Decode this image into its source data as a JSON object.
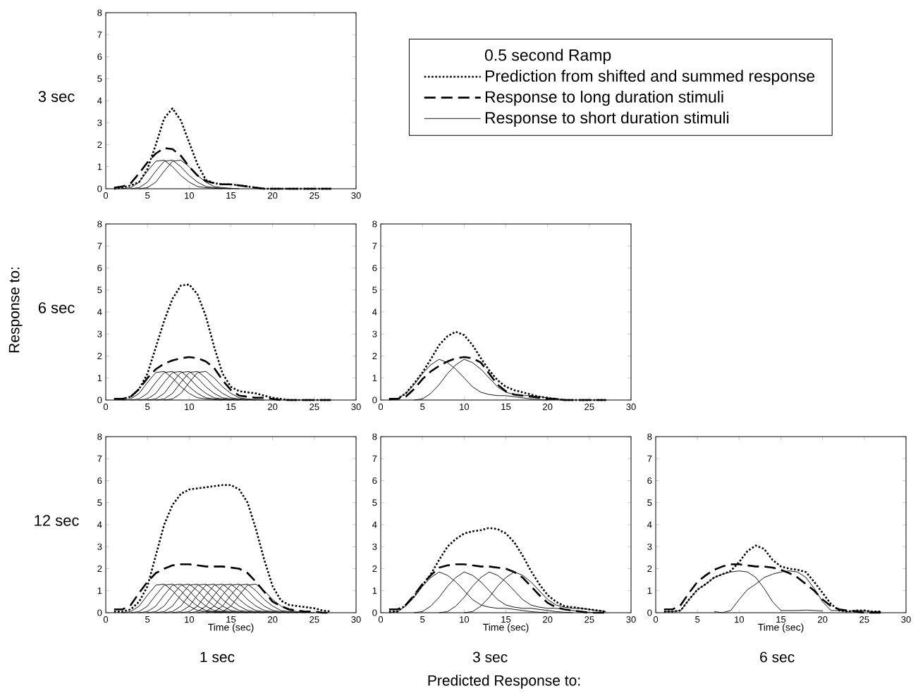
{
  "chart_data": [
    {
      "type": "line",
      "ylabel": "3 sec",
      "xlim": [
        0,
        30
      ],
      "ylim": [
        0,
        8
      ],
      "xticks": [
        0,
        5,
        10,
        15,
        20,
        25,
        30
      ],
      "yticks": [
        0,
        1,
        2,
        3,
        4,
        5,
        6,
        7,
        8
      ],
      "legend": "right",
      "legend_title": "0.5 second Ramp",
      "series": [
        {
          "name": "Prediction from shifted and summed response",
          "color": "#000000",
          "line_style": "dotted",
          "x": [
            1,
            2,
            3,
            4,
            5,
            6,
            7,
            8,
            9,
            10,
            11,
            12,
            13,
            14,
            15,
            16,
            17,
            18,
            19,
            20,
            21,
            22,
            23,
            24,
            25,
            26,
            27
          ],
          "values": [
            0,
            0.05,
            0.15,
            0.3,
            0.9,
            2.0,
            3.2,
            3.65,
            3.1,
            2.1,
            1.1,
            0.4,
            0.25,
            0.2,
            0.2,
            0.15,
            0.1,
            0.05,
            0,
            0,
            0,
            0,
            0,
            0,
            0,
            0,
            0
          ]
        },
        {
          "name": "Response to long duration stimuli",
          "color": "#000000",
          "line_style": "dashed",
          "x": [
            1,
            2,
            3,
            4,
            5,
            6,
            7,
            8,
            9,
            10,
            11,
            12,
            13,
            14,
            15,
            16,
            17,
            18,
            19,
            20,
            21,
            22,
            23,
            24,
            25,
            26,
            27
          ],
          "values": [
            0.05,
            0.1,
            0.25,
            0.7,
            1.2,
            1.6,
            1.85,
            1.8,
            1.5,
            1.0,
            0.6,
            0.35,
            0.25,
            0.2,
            0.2,
            0.15,
            0.1,
            0.05,
            0,
            0,
            0,
            0,
            0,
            0,
            0,
            0,
            0
          ]
        },
        {
          "name": "Response to short duration stimuli",
          "color": "#000000",
          "line_style": "solid",
          "x": [
            2,
            3,
            4,
            5,
            6,
            7,
            8,
            9,
            10,
            11,
            12,
            13,
            14
          ],
          "values": [
            0,
            0.05,
            0.3,
            0.8,
            1.25,
            1.3,
            1.0,
            0.6,
            0.3,
            0.1,
            0.05,
            0.02,
            0
          ]
        },
        {
          "color": "#000000",
          "line_style": "solid",
          "x": [
            3,
            4,
            5,
            6,
            7,
            8,
            9,
            10,
            11,
            12,
            13,
            14,
            15
          ],
          "values": [
            0,
            0.05,
            0.3,
            0.8,
            1.25,
            1.3,
            1.0,
            0.6,
            0.3,
            0.1,
            0.05,
            0.02,
            0
          ]
        },
        {
          "color": "#000000",
          "line_style": "solid",
          "x": [
            4,
            5,
            6,
            7,
            8,
            9,
            10,
            11,
            12,
            13,
            14,
            15,
            16
          ],
          "values": [
            0,
            0.05,
            0.3,
            0.8,
            1.25,
            1.3,
            1.0,
            0.6,
            0.3,
            0.1,
            0.05,
            0.02,
            0
          ]
        }
      ]
    },
    {
      "type": "line",
      "ylabel": "6 sec",
      "xlim": [
        0,
        30
      ],
      "ylim": [
        0,
        8
      ],
      "xticks": [
        0,
        5,
        10,
        15,
        20,
        25,
        30
      ],
      "yticks": [
        0,
        1,
        2,
        3,
        4,
        5,
        6,
        7,
        8
      ],
      "annotations": [
        "Response to:"
      ],
      "series": [
        {
          "color": "#000000",
          "line_style": "dotted",
          "x": [
            1,
            2,
            3,
            4,
            5,
            6,
            7,
            8,
            9,
            10,
            11,
            12,
            13,
            14,
            15,
            16,
            17,
            18,
            19,
            20,
            21,
            22,
            23,
            24,
            25,
            26,
            27
          ],
          "values": [
            0.05,
            0.05,
            0.15,
            0.5,
            1.2,
            2.4,
            3.6,
            4.6,
            5.2,
            5.25,
            4.8,
            3.8,
            2.4,
            1.2,
            0.6,
            0.4,
            0.35,
            0.3,
            0.2,
            0.1,
            0.05,
            0,
            0,
            0,
            0,
            0,
            0
          ]
        },
        {
          "color": "#000000",
          "line_style": "dashed",
          "x": [
            1,
            2,
            3,
            4,
            5,
            6,
            7,
            8,
            9,
            10,
            11,
            12,
            13,
            14,
            15,
            16,
            17,
            18,
            19,
            20,
            21,
            22,
            23,
            24,
            25,
            26,
            27
          ],
          "values": [
            0.05,
            0.05,
            0.15,
            0.5,
            1.0,
            1.4,
            1.65,
            1.8,
            1.9,
            1.95,
            1.9,
            1.75,
            1.45,
            0.9,
            0.45,
            0.2,
            0.15,
            0.1,
            0.1,
            0.05,
            0,
            0,
            0,
            0,
            0,
            0,
            0
          ]
        },
        {
          "color": "#000000",
          "line_style": "solid",
          "x": [
            2,
            3,
            4,
            5,
            6,
            7,
            8,
            9,
            10,
            11,
            12,
            13,
            14
          ],
          "values": [
            0,
            0.05,
            0.3,
            0.8,
            1.25,
            1.3,
            1.0,
            0.6,
            0.3,
            0.1,
            0.05,
            0.02,
            0
          ]
        },
        {
          "color": "#000000",
          "line_style": "solid",
          "x": [
            3,
            4,
            5,
            6,
            7,
            8,
            9,
            10,
            11,
            12,
            13,
            14,
            15
          ],
          "values": [
            0,
            0.05,
            0.3,
            0.8,
            1.25,
            1.3,
            1.0,
            0.6,
            0.3,
            0.1,
            0.05,
            0.02,
            0
          ]
        },
        {
          "color": "#000000",
          "line_style": "solid",
          "x": [
            4,
            5,
            6,
            7,
            8,
            9,
            10,
            11,
            12,
            13,
            14,
            15,
            16
          ],
          "values": [
            0,
            0.05,
            0.3,
            0.8,
            1.25,
            1.3,
            1.0,
            0.6,
            0.3,
            0.1,
            0.05,
            0.02,
            0
          ]
        },
        {
          "color": "#000000",
          "line_style": "solid",
          "x": [
            5,
            6,
            7,
            8,
            9,
            10,
            11,
            12,
            13,
            14,
            15,
            16,
            17
          ],
          "values": [
            0,
            0.05,
            0.3,
            0.8,
            1.25,
            1.3,
            1.0,
            0.6,
            0.3,
            0.1,
            0.05,
            0.02,
            0
          ]
        },
        {
          "color": "#000000",
          "line_style": "solid",
          "x": [
            6,
            7,
            8,
            9,
            10,
            11,
            12,
            13,
            14,
            15,
            16,
            17,
            18
          ],
          "values": [
            0,
            0.05,
            0.3,
            0.8,
            1.25,
            1.3,
            1.0,
            0.6,
            0.3,
            0.1,
            0.05,
            0.02,
            0
          ]
        },
        {
          "color": "#000000",
          "line_style": "solid",
          "x": [
            7,
            8,
            9,
            10,
            11,
            12,
            13,
            14,
            15,
            16,
            17,
            18,
            19
          ],
          "values": [
            0,
            0.05,
            0.3,
            0.8,
            1.25,
            1.3,
            1.0,
            0.6,
            0.3,
            0.1,
            0.05,
            0.02,
            0
          ]
        }
      ]
    },
    {
      "type": "line",
      "xlim": [
        0,
        30
      ],
      "ylim": [
        0,
        8
      ],
      "xticks": [
        0,
        5,
        10,
        15,
        20,
        25,
        30
      ],
      "yticks": [
        0,
        1,
        2,
        3,
        4,
        5,
        6,
        7,
        8
      ],
      "series": [
        {
          "color": "#000000",
          "line_style": "dotted",
          "x": [
            1,
            2,
            3,
            4,
            5,
            6,
            7,
            8,
            9,
            10,
            11,
            12,
            13,
            14,
            15,
            16,
            17,
            18,
            19,
            20,
            21,
            22,
            23,
            24,
            25,
            26,
            27
          ],
          "values": [
            0.05,
            0.05,
            0.3,
            0.75,
            1.25,
            1.85,
            2.5,
            2.9,
            3.1,
            2.95,
            2.5,
            1.9,
            1.35,
            0.9,
            0.6,
            0.45,
            0.35,
            0.25,
            0.15,
            0.1,
            0.05,
            0,
            0,
            0,
            0,
            0,
            0
          ]
        },
        {
          "color": "#000000",
          "line_style": "dashed",
          "x": [
            1,
            2,
            3,
            4,
            5,
            6,
            7,
            8,
            9,
            10,
            11,
            12,
            13,
            14,
            15,
            16,
            17,
            18,
            19,
            20,
            21,
            22,
            23,
            24,
            25,
            26,
            27
          ],
          "values": [
            0.05,
            0.05,
            0.15,
            0.5,
            0.95,
            1.3,
            1.55,
            1.75,
            1.9,
            1.95,
            1.9,
            1.7,
            1.2,
            0.7,
            0.4,
            0.25,
            0.2,
            0.15,
            0.1,
            0.05,
            0.05,
            0,
            0,
            0,
            0,
            0,
            0
          ]
        },
        {
          "color": "#000000",
          "line_style": "solid",
          "x": [
            1,
            2,
            3,
            4,
            5,
            6,
            7,
            8,
            9,
            10,
            11,
            12,
            13,
            14,
            15,
            16,
            17,
            18,
            19,
            20
          ],
          "values": [
            0,
            0.05,
            0.3,
            0.7,
            1.2,
            1.6,
            1.85,
            1.7,
            1.4,
            1.0,
            0.6,
            0.35,
            0.25,
            0.2,
            0.2,
            0.15,
            0.1,
            0.05,
            0.02,
            0
          ]
        },
        {
          "color": "#000000",
          "line_style": "solid",
          "x": [
            4,
            5,
            6,
            7,
            8,
            9,
            10,
            11,
            12,
            13,
            14,
            15,
            16,
            17,
            18,
            19,
            20,
            21,
            22,
            23
          ],
          "values": [
            0,
            0.05,
            0.3,
            0.7,
            1.2,
            1.6,
            1.85,
            1.7,
            1.4,
            1.0,
            0.6,
            0.35,
            0.25,
            0.2,
            0.2,
            0.15,
            0.1,
            0.05,
            0.02,
            0
          ]
        }
      ]
    },
    {
      "type": "line",
      "ylabel": "12 sec",
      "xlabel": "Time (sec)",
      "xlim": [
        0,
        30
      ],
      "ylim": [
        0,
        8
      ],
      "xticks": [
        0,
        5,
        10,
        15,
        20,
        25,
        30
      ],
      "yticks": [
        0,
        1,
        2,
        3,
        4,
        5,
        6,
        7,
        8
      ],
      "annotations": [
        "1 sec"
      ],
      "series": [
        {
          "color": "#000000",
          "line_style": "dotted",
          "x": [
            1,
            2,
            3,
            4,
            5,
            6,
            7,
            8,
            9,
            10,
            11,
            12,
            13,
            14,
            15,
            16,
            17,
            18,
            19,
            20,
            21,
            22,
            23,
            24,
            25,
            26,
            27
          ],
          "values": [
            0.05,
            0.05,
            0.15,
            0.5,
            1.2,
            2.6,
            4.0,
            4.9,
            5.4,
            5.6,
            5.65,
            5.7,
            5.75,
            5.8,
            5.8,
            5.6,
            5.0,
            3.8,
            2.4,
            1.2,
            0.55,
            0.35,
            0.3,
            0.25,
            0.2,
            0.1,
            0.05
          ]
        },
        {
          "color": "#000000",
          "line_style": "dashed",
          "x": [
            1,
            2,
            3,
            4,
            5,
            6,
            7,
            8,
            9,
            10,
            11,
            12,
            13,
            14,
            15,
            16,
            17,
            18,
            19,
            20,
            21,
            22,
            23,
            24,
            25,
            26,
            27
          ],
          "values": [
            0.15,
            0.15,
            0.35,
            0.9,
            1.4,
            1.8,
            2.0,
            2.15,
            2.2,
            2.2,
            2.15,
            2.1,
            2.1,
            2.1,
            2.05,
            2.0,
            1.8,
            1.4,
            0.95,
            0.5,
            0.3,
            0.15,
            0.1,
            0.05,
            0.05,
            0,
            0
          ]
        },
        {
          "color": "#000000",
          "line_style": "solid",
          "x": [
            2,
            3,
            4,
            5,
            6,
            7,
            8,
            9,
            10,
            11,
            12,
            13,
            14
          ],
          "values": [
            0,
            0.05,
            0.3,
            0.8,
            1.25,
            1.3,
            1.0,
            0.6,
            0.3,
            0.1,
            0.05,
            0.02,
            0
          ]
        },
        {
          "color": "#000000",
          "line_style": "solid",
          "x": [
            3,
            4,
            5,
            6,
            7,
            8,
            9,
            10,
            11,
            12,
            13,
            14,
            15
          ],
          "values": [
            0,
            0.05,
            0.3,
            0.8,
            1.25,
            1.3,
            1.0,
            0.6,
            0.3,
            0.1,
            0.05,
            0.02,
            0
          ]
        },
        {
          "color": "#000000",
          "line_style": "solid",
          "x": [
            4,
            5,
            6,
            7,
            8,
            9,
            10,
            11,
            12,
            13,
            14,
            15,
            16
          ],
          "values": [
            0,
            0.05,
            0.3,
            0.8,
            1.25,
            1.3,
            1.0,
            0.6,
            0.3,
            0.1,
            0.05,
            0.02,
            0
          ]
        },
        {
          "color": "#000000",
          "line_style": "solid",
          "x": [
            5,
            6,
            7,
            8,
            9,
            10,
            11,
            12,
            13,
            14,
            15,
            16,
            17
          ],
          "values": [
            0,
            0.05,
            0.3,
            0.8,
            1.25,
            1.3,
            1.0,
            0.6,
            0.3,
            0.1,
            0.05,
            0.02,
            0
          ]
        },
        {
          "color": "#000000",
          "line_style": "solid",
          "x": [
            6,
            7,
            8,
            9,
            10,
            11,
            12,
            13,
            14,
            15,
            16,
            17,
            18
          ],
          "values": [
            0,
            0.05,
            0.3,
            0.8,
            1.25,
            1.3,
            1.0,
            0.6,
            0.3,
            0.1,
            0.05,
            0.02,
            0
          ]
        },
        {
          "color": "#000000",
          "line_style": "solid",
          "x": [
            7,
            8,
            9,
            10,
            11,
            12,
            13,
            14,
            15,
            16,
            17,
            18,
            19
          ],
          "values": [
            0,
            0.05,
            0.3,
            0.8,
            1.25,
            1.3,
            1.0,
            0.6,
            0.3,
            0.1,
            0.05,
            0.02,
            0
          ]
        },
        {
          "color": "#000000",
          "line_style": "solid",
          "x": [
            8,
            9,
            10,
            11,
            12,
            13,
            14,
            15,
            16,
            17,
            18,
            19,
            20
          ],
          "values": [
            0,
            0.05,
            0.3,
            0.8,
            1.25,
            1.3,
            1.0,
            0.6,
            0.3,
            0.1,
            0.05,
            0.02,
            0
          ]
        },
        {
          "color": "#000000",
          "line_style": "solid",
          "x": [
            9,
            10,
            11,
            12,
            13,
            14,
            15,
            16,
            17,
            18,
            19,
            20,
            21
          ],
          "values": [
            0,
            0.05,
            0.3,
            0.8,
            1.25,
            1.3,
            1.0,
            0.6,
            0.3,
            0.1,
            0.05,
            0.02,
            0
          ]
        },
        {
          "color": "#000000",
          "line_style": "solid",
          "x": [
            10,
            11,
            12,
            13,
            14,
            15,
            16,
            17,
            18,
            19,
            20,
            21,
            22
          ],
          "values": [
            0,
            0.05,
            0.3,
            0.8,
            1.25,
            1.3,
            1.0,
            0.6,
            0.3,
            0.1,
            0.05,
            0.02,
            0
          ]
        },
        {
          "color": "#000000",
          "line_style": "solid",
          "x": [
            11,
            12,
            13,
            14,
            15,
            16,
            17,
            18,
            19,
            20,
            21,
            22,
            23
          ],
          "values": [
            0,
            0.05,
            0.3,
            0.8,
            1.25,
            1.3,
            1.0,
            0.6,
            0.3,
            0.1,
            0.05,
            0.02,
            0
          ]
        },
        {
          "color": "#000000",
          "line_style": "solid",
          "x": [
            12,
            13,
            14,
            15,
            16,
            17,
            18,
            19,
            20,
            21,
            22,
            23,
            24
          ],
          "values": [
            0,
            0.05,
            0.3,
            0.8,
            1.25,
            1.3,
            1.0,
            0.6,
            0.3,
            0.1,
            0.05,
            0.02,
            0
          ]
        },
        {
          "color": "#000000",
          "line_style": "solid",
          "x": [
            13,
            14,
            15,
            16,
            17,
            18,
            19,
            20,
            21,
            22,
            23,
            24,
            25
          ],
          "values": [
            0,
            0.05,
            0.3,
            0.8,
            1.25,
            1.3,
            1.0,
            0.6,
            0.3,
            0.1,
            0.05,
            0.02,
            0
          ]
        }
      ]
    },
    {
      "type": "line",
      "xlabel": "Time (sec)",
      "xlim": [
        0,
        30
      ],
      "ylim": [
        0,
        8
      ],
      "xticks": [
        0,
        5,
        10,
        15,
        20,
        25,
        30
      ],
      "yticks": [
        0,
        1,
        2,
        3,
        4,
        5,
        6,
        7,
        8
      ],
      "annotations": [
        "3 sec",
        "Predicted Response to:"
      ],
      "series": [
        {
          "color": "#000000",
          "line_style": "dotted",
          "x": [
            1,
            2,
            3,
            4,
            5,
            6,
            7,
            8,
            9,
            10,
            11,
            12,
            13,
            14,
            15,
            16,
            17,
            18,
            19,
            20,
            21,
            22,
            23,
            24,
            25,
            26,
            27
          ],
          "values": [
            0.05,
            0.05,
            0.35,
            0.75,
            1.25,
            1.75,
            2.4,
            3.0,
            3.35,
            3.6,
            3.7,
            3.75,
            3.85,
            3.8,
            3.6,
            3.2,
            2.6,
            1.9,
            1.3,
            0.8,
            0.5,
            0.3,
            0.25,
            0.2,
            0.15,
            0.1,
            0.05
          ]
        },
        {
          "color": "#000000",
          "line_style": "dashed",
          "x": [
            1,
            2,
            3,
            4,
            5,
            6,
            7,
            8,
            9,
            10,
            11,
            12,
            13,
            14,
            15,
            16,
            17,
            18,
            19,
            20,
            21,
            22,
            23,
            24,
            25,
            26,
            27
          ],
          "values": [
            0.15,
            0.15,
            0.35,
            0.8,
            1.3,
            1.7,
            2.05,
            2.15,
            2.2,
            2.2,
            2.15,
            2.1,
            2.1,
            2.05,
            2.0,
            1.85,
            1.6,
            1.2,
            0.8,
            0.45,
            0.25,
            0.15,
            0.1,
            0.05,
            0,
            0,
            0
          ]
        },
        {
          "color": "#000000",
          "line_style": "solid",
          "x": [
            1,
            2,
            3,
            4,
            5,
            6,
            7,
            8,
            9,
            10,
            11,
            12,
            13,
            14,
            15,
            16,
            17,
            18,
            19,
            20
          ],
          "values": [
            0,
            0.05,
            0.3,
            0.7,
            1.2,
            1.6,
            1.85,
            1.7,
            1.4,
            1.0,
            0.6,
            0.35,
            0.25,
            0.2,
            0.2,
            0.15,
            0.1,
            0.05,
            0.02,
            0
          ]
        },
        {
          "color": "#000000",
          "line_style": "solid",
          "x": [
            4,
            5,
            6,
            7,
            8,
            9,
            10,
            11,
            12,
            13,
            14,
            15,
            16,
            17,
            18,
            19,
            20,
            21,
            22,
            23
          ],
          "values": [
            0,
            0.05,
            0.3,
            0.7,
            1.2,
            1.6,
            1.85,
            1.7,
            1.4,
            1.0,
            0.6,
            0.35,
            0.25,
            0.2,
            0.2,
            0.15,
            0.1,
            0.05,
            0.02,
            0
          ]
        },
        {
          "color": "#000000",
          "line_style": "solid",
          "x": [
            7,
            8,
            9,
            10,
            11,
            12,
            13,
            14,
            15,
            16,
            17,
            18,
            19,
            20,
            21,
            22,
            23,
            24,
            25,
            26
          ],
          "values": [
            0,
            0.05,
            0.3,
            0.7,
            1.2,
            1.6,
            1.85,
            1.7,
            1.4,
            1.0,
            0.6,
            0.35,
            0.25,
            0.2,
            0.2,
            0.15,
            0.1,
            0.05,
            0.02,
            0
          ]
        },
        {
          "color": "#000000",
          "line_style": "solid",
          "x": [
            10,
            11,
            12,
            13,
            14,
            15,
            16,
            17,
            18,
            19,
            20,
            21,
            22,
            23,
            24,
            25,
            26,
            27
          ],
          "values": [
            0,
            0.05,
            0.3,
            0.7,
            1.2,
            1.6,
            1.85,
            1.7,
            1.4,
            1.0,
            0.6,
            0.35,
            0.25,
            0.2,
            0.2,
            0.15,
            0.1,
            0.05
          ]
        }
      ]
    },
    {
      "type": "line",
      "xlabel": "Time (sec)",
      "xlim": [
        0,
        30
      ],
      "ylim": [
        0,
        8
      ],
      "xticks": [
        0,
        5,
        10,
        15,
        20,
        25,
        30
      ],
      "yticks": [
        0,
        1,
        2,
        3,
        4,
        5,
        6,
        7,
        8
      ],
      "annotations": [
        "6 sec"
      ],
      "series": [
        {
          "color": "#000000",
          "line_style": "dotted",
          "x": [
            1,
            2,
            3,
            4,
            5,
            6,
            7,
            8,
            9,
            10,
            11,
            12,
            13,
            14,
            15,
            16,
            17,
            18,
            19,
            20,
            21,
            22,
            23,
            24,
            25,
            26,
            27
          ],
          "values": [
            0.05,
            0.05,
            0.1,
            0.6,
            1.05,
            1.3,
            1.6,
            1.75,
            1.9,
            2.3,
            2.8,
            3.05,
            2.9,
            2.4,
            2.1,
            2.0,
            1.95,
            1.85,
            1.4,
            0.9,
            0.4,
            0.1,
            0.05,
            0.1,
            0.1,
            0.05,
            0.05
          ]
        },
        {
          "color": "#000000",
          "line_style": "dashed",
          "x": [
            1,
            2,
            3,
            4,
            5,
            6,
            7,
            8,
            9,
            10,
            11,
            12,
            13,
            14,
            15,
            16,
            17,
            18,
            19,
            20,
            21,
            22,
            23,
            24,
            25,
            26,
            27
          ],
          "values": [
            0.15,
            0.15,
            0.35,
            0.9,
            1.4,
            1.7,
            1.95,
            2.1,
            2.2,
            2.2,
            2.15,
            2.1,
            2.1,
            2.05,
            1.95,
            1.8,
            1.6,
            1.3,
            1.0,
            0.6,
            0.3,
            0.15,
            0.1,
            0.05,
            0,
            0,
            0
          ]
        },
        {
          "color": "#000000",
          "line_style": "solid",
          "x": [
            1,
            2,
            3,
            4,
            5,
            6,
            7,
            8,
            9,
            10,
            11,
            12,
            13,
            14,
            15,
            16,
            17,
            18,
            19,
            20
          ],
          "values": [
            0.05,
            0.05,
            0.1,
            0.6,
            1.05,
            1.3,
            1.6,
            1.75,
            1.85,
            1.9,
            1.85,
            1.6,
            1.1,
            0.5,
            0.1,
            0.1,
            0.1,
            0.12,
            0.1,
            0.08
          ]
        },
        {
          "color": "#000000",
          "line_style": "solid",
          "x": [
            7,
            8,
            9,
            10,
            11,
            12,
            13,
            14,
            15,
            16,
            17,
            18,
            19,
            20,
            21,
            22,
            23,
            24,
            25,
            26,
            27
          ],
          "values": [
            0.05,
            0,
            0.1,
            0.6,
            1.05,
            1.3,
            1.6,
            1.75,
            1.85,
            1.9,
            1.85,
            1.6,
            1.1,
            0.5,
            0.1,
            0.1,
            0.05,
            0.1,
            0.08,
            0.05,
            0.05
          ]
        }
      ]
    }
  ]
}
